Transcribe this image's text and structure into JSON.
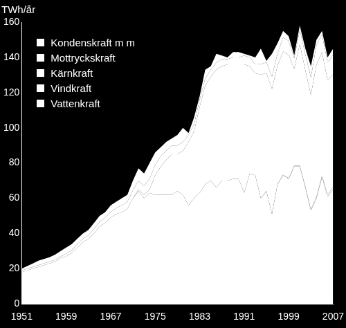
{
  "chart_data": {
    "type": "area",
    "y_label": "TWh/år",
    "x": [
      1951,
      1952,
      1953,
      1954,
      1955,
      1956,
      1957,
      1958,
      1959,
      1960,
      1961,
      1962,
      1963,
      1964,
      1965,
      1966,
      1967,
      1968,
      1969,
      1970,
      1971,
      1972,
      1973,
      1974,
      1975,
      1976,
      1977,
      1978,
      1979,
      1980,
      1981,
      1982,
      1983,
      1984,
      1985,
      1986,
      1987,
      1988,
      1989,
      1990,
      1991,
      1992,
      1993,
      1994,
      1995,
      1996,
      1997,
      1998,
      1999,
      2000,
      2001,
      2002,
      2003,
      2004,
      2005,
      2006,
      2007
    ],
    "series": [
      {
        "name": "Kondenskraft m m",
        "color": "#ffffff",
        "values": [
          1,
          1.5,
          2,
          2.5,
          2.5,
          2.5,
          3,
          3,
          3.5,
          3.5,
          3,
          3,
          3,
          3.5,
          3.5,
          3,
          4,
          3.5,
          4,
          4,
          5.5,
          7,
          7,
          9,
          7,
          5,
          5,
          4,
          6,
          8,
          1,
          4,
          2,
          5,
          2,
          5,
          2,
          1,
          3,
          3,
          1,
          1,
          4,
          8.9,
          0.9,
          12.9,
          5.8,
          3.7,
          2.6,
          1.5,
          2.5,
          3.4,
          6.4,
          3.1,
          2.1,
          3,
          3.6
        ]
      },
      {
        "name": "Mottryckskraft",
        "color": "#ffffff",
        "values": [
          1,
          1,
          1,
          1,
          1,
          1,
          1,
          1,
          1.5,
          1.5,
          2,
          2,
          2,
          2.5,
          2.5,
          3,
          3,
          3.5,
          4,
          4,
          4.5,
          5,
          5,
          6,
          6,
          6,
          5,
          5,
          5,
          5,
          4,
          4,
          4,
          4,
          4,
          4,
          4,
          3,
          4,
          4,
          5,
          5,
          5,
          6,
          6,
          7,
          7,
          8,
          8,
          6,
          8,
          9,
          10,
          11,
          10,
          10,
          11
        ]
      },
      {
        "name": "Kärnkraft",
        "color": "#ffffff",
        "values": [
          0,
          0,
          0,
          0,
          0,
          0,
          0,
          0,
          0,
          0,
          0,
          0,
          0,
          0,
          0,
          0,
          0,
          0,
          0,
          0,
          0,
          1,
          2,
          2,
          11,
          16,
          20,
          23,
          21,
          25,
          36,
          38,
          49,
          56,
          59,
          67,
          65,
          66,
          65,
          65,
          73,
          61,
          58,
          70,
          67,
          71,
          67,
          70,
          70,
          55,
          69,
          66,
          65,
          75,
          70,
          65,
          64
        ]
      },
      {
        "name": "Vindkraft",
        "color": "#ffffff",
        "values": [
          0,
          0,
          0,
          0,
          0,
          0,
          0,
          0,
          0,
          0,
          0,
          0,
          0,
          0,
          0,
          0,
          0,
          0,
          0,
          0,
          0,
          0,
          0,
          0,
          0,
          0,
          0,
          0,
          0,
          0,
          0,
          0,
          0,
          0,
          0,
          0,
          0,
          0,
          0,
          0,
          0,
          0,
          0,
          0.1,
          0.1,
          0.1,
          0.2,
          0.3,
          0.4,
          0.5,
          0.5,
          0.6,
          0.6,
          0.9,
          0.9,
          1,
          1.4
        ]
      },
      {
        "name": "Vattenkraft",
        "color": "#ffffff",
        "values": [
          18,
          19,
          20,
          21,
          22,
          23,
          24,
          26,
          27,
          29,
          32,
          35,
          37,
          40,
          44,
          46,
          49,
          51,
          52,
          54,
          60,
          64,
          60,
          63,
          62,
          62,
          62,
          62,
          64,
          62,
          56,
          60,
          63,
          68,
          70,
          66,
          70,
          70,
          71,
          71,
          63,
          74,
          73,
          60,
          64,
          51,
          68,
          73,
          71,
          78,
          78,
          66,
          53,
          60,
          72,
          61,
          65
        ]
      }
    ],
    "stacked": true,
    "xlim": [
      1951,
      2007
    ],
    "xticks": [
      1951,
      1959,
      1967,
      1975,
      1983,
      1991,
      1999,
      2007
    ],
    "ylim": [
      0,
      160
    ],
    "yticks": [
      0,
      20,
      40,
      60,
      80,
      100,
      120,
      140,
      160
    ],
    "grid": true,
    "legend": "upper left"
  }
}
